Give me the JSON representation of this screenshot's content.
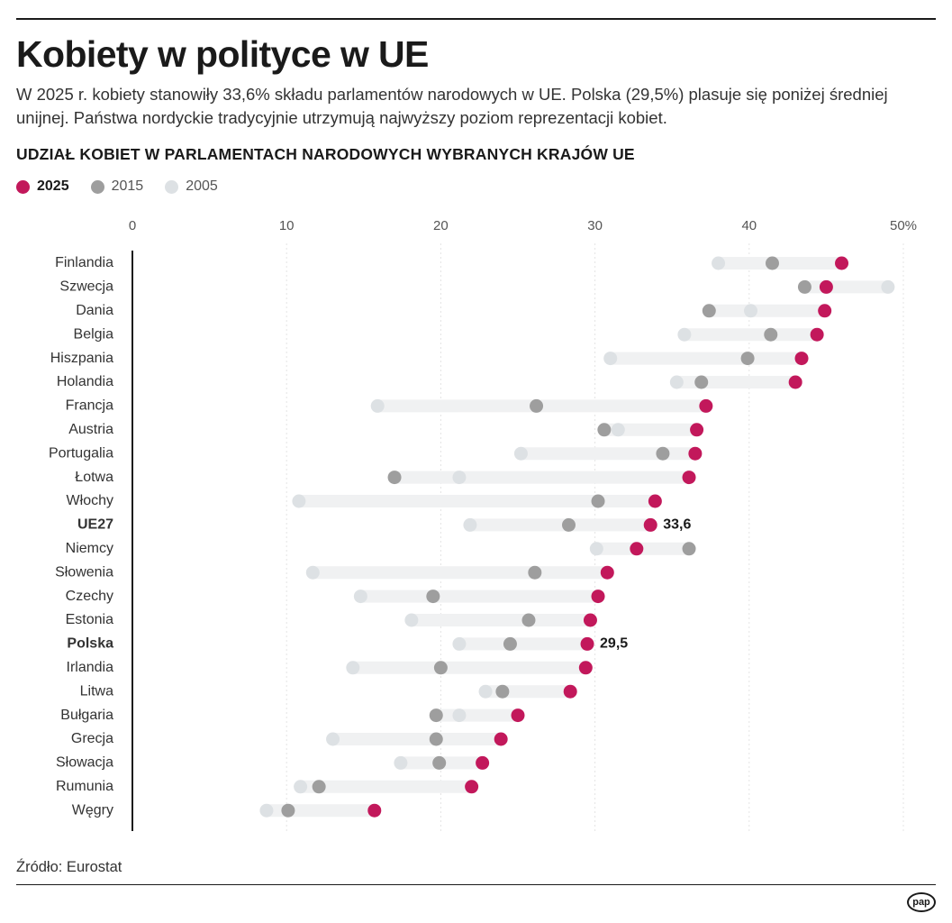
{
  "header": {
    "title": "Kobiety w polityce w UE",
    "subtitle": "W 2025 r. kobiety stanowiły 33,6% składu parlamentów narodowych w UE. Polska (29,5%) plasuje się poniżej średniej unijnej. Państwa nordyckie tradycyjnie utrzymują najwyższy poziom reprezentacji kobiet.",
    "chart_heading": "UDZIAŁ KOBIET W PARLAMENTACH NARODOWYCH WYBRANYCH KRAJÓW UE"
  },
  "legend": [
    {
      "label": "2025",
      "color": "#c2185b"
    },
    {
      "label": "2015",
      "color": "#9e9e9e"
    },
    {
      "label": "2005",
      "color": "#dde1e4"
    }
  ],
  "colors": {
    "y2025": "#c2185b",
    "y2015": "#9e9e9e",
    "y2005": "#dde1e4",
    "bar": "#f0f1f2",
    "grid": "#e4e4e4",
    "axis": "#1a1a1a"
  },
  "chart_data": {
    "type": "dot-plot",
    "title": "UDZIAŁ KOBIET W PARLAMENTACH NARODOWYCH WYBRANYCH KRAJÓW UE",
    "x_axis": {
      "min": 0,
      "max": 50,
      "ticks": [
        "0",
        "10",
        "20",
        "30",
        "40",
        "50%"
      ]
    },
    "series_names": [
      "2025",
      "2015",
      "2005"
    ],
    "rows": [
      {
        "country": "Finlandia",
        "y2025": 46.0,
        "y2015": 41.5,
        "y2005": 38.0
      },
      {
        "country": "Szwecja",
        "y2025": 45.0,
        "y2015": 43.6,
        "y2005": 49.0
      },
      {
        "country": "Dania",
        "y2025": 44.9,
        "y2015": 37.4,
        "y2005": 40.1
      },
      {
        "country": "Belgia",
        "y2025": 44.4,
        "y2015": 41.4,
        "y2005": 35.8
      },
      {
        "country": "Hiszpania",
        "y2025": 43.4,
        "y2015": 39.9,
        "y2005": 31.0
      },
      {
        "country": "Holandia",
        "y2025": 43.0,
        "y2015": 36.9,
        "y2005": 35.3
      },
      {
        "country": "Francja",
        "y2025": 37.2,
        "y2015": 26.2,
        "y2005": 15.9
      },
      {
        "country": "Austria",
        "y2025": 36.6,
        "y2015": 30.6,
        "y2005": 31.5
      },
      {
        "country": "Portugalia",
        "y2025": 36.5,
        "y2015": 34.4,
        "y2005": 25.2
      },
      {
        "country": "Łotwa",
        "y2025": 36.1,
        "y2015": 17.0,
        "y2005": 21.2
      },
      {
        "country": "Włochy",
        "y2025": 33.9,
        "y2015": 30.2,
        "y2005": 10.8
      },
      {
        "country": "UE27",
        "y2025": 33.6,
        "y2015": 28.3,
        "y2005": 21.9,
        "label": "33,6",
        "highlight": true
      },
      {
        "country": "Niemcy",
        "y2025": 32.7,
        "y2015": 36.1,
        "y2005": 30.1
      },
      {
        "country": "Słowenia",
        "y2025": 30.8,
        "y2015": 26.1,
        "y2005": 11.7
      },
      {
        "country": "Czechy",
        "y2025": 30.2,
        "y2015": 19.5,
        "y2005": 14.8
      },
      {
        "country": "Estonia",
        "y2025": 29.7,
        "y2015": 25.7,
        "y2005": 18.1
      },
      {
        "country": "Polska",
        "y2025": 29.5,
        "y2015": 24.5,
        "y2005": 21.2,
        "label": "29,5",
        "highlight": true
      },
      {
        "country": "Irlandia",
        "y2025": 29.4,
        "y2015": 20.0,
        "y2005": 14.3
      },
      {
        "country": "Litwa",
        "y2025": 28.4,
        "y2015": 24.0,
        "y2005": 22.9
      },
      {
        "country": "Bułgaria",
        "y2025": 25.0,
        "y2015": 19.7,
        "y2005": 21.2
      },
      {
        "country": "Grecja",
        "y2025": 23.9,
        "y2015": 19.7,
        "y2005": 13.0
      },
      {
        "country": "Słowacja",
        "y2025": 22.7,
        "y2015": 19.9,
        "y2005": 17.4
      },
      {
        "country": "Rumunia",
        "y2025": 22.0,
        "y2015": 12.1,
        "y2005": 10.9
      },
      {
        "country": "Węgry",
        "y2025": 15.7,
        "y2015": 10.1,
        "y2005": 8.7
      }
    ]
  },
  "footer": {
    "source": "Źródło: Eurostat",
    "logo": "pap"
  }
}
